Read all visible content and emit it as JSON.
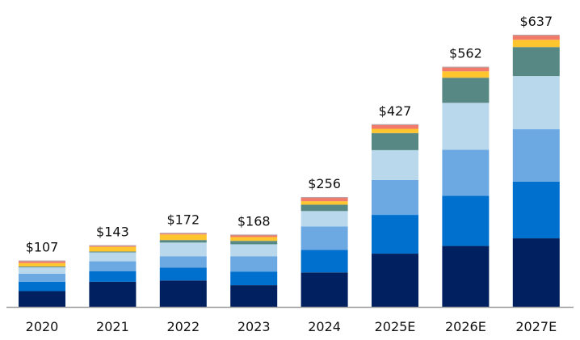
{
  "chart_data": {
    "type": "bar",
    "stacked": true,
    "categories": [
      "2020",
      "2021",
      "2022",
      "2023",
      "2024",
      "2025E",
      "2026E",
      "2027E"
    ],
    "totals": [
      107,
      143,
      172,
      168,
      256,
      427,
      562,
      637
    ],
    "total_labels": [
      "$107",
      "$143",
      "$172",
      "$168",
      "$256",
      "$427",
      "$562",
      "$637"
    ],
    "series": [
      {
        "color": "#002060",
        "values": [
          37,
          59,
          62,
          51,
          81,
          125,
          143,
          161
        ]
      },
      {
        "color": "#0070CE",
        "values": [
          22,
          25,
          30,
          32,
          53,
          91,
          118,
          133
        ]
      },
      {
        "color": "#6CA9E2",
        "values": [
          19,
          23,
          27,
          36,
          55,
          82,
          108,
          123
        ]
      },
      {
        "color": "#B9D8EC",
        "values": [
          15,
          21,
          32,
          28,
          36,
          70,
          110,
          125
        ]
      },
      {
        "color": "#578883",
        "values": [
          2,
          2,
          6,
          8,
          15,
          40,
          59,
          68
        ]
      },
      {
        "color": "#FFC52F",
        "values": [
          8,
          11,
          13,
          9,
          8,
          10,
          15,
          17
        ]
      },
      {
        "color": "#F27A6A",
        "values": [
          4,
          2,
          2,
          4,
          8,
          9,
          9,
          10
        ]
      }
    ],
    "ylim": [
      0,
      637
    ],
    "grid": false,
    "legend": "none"
  }
}
